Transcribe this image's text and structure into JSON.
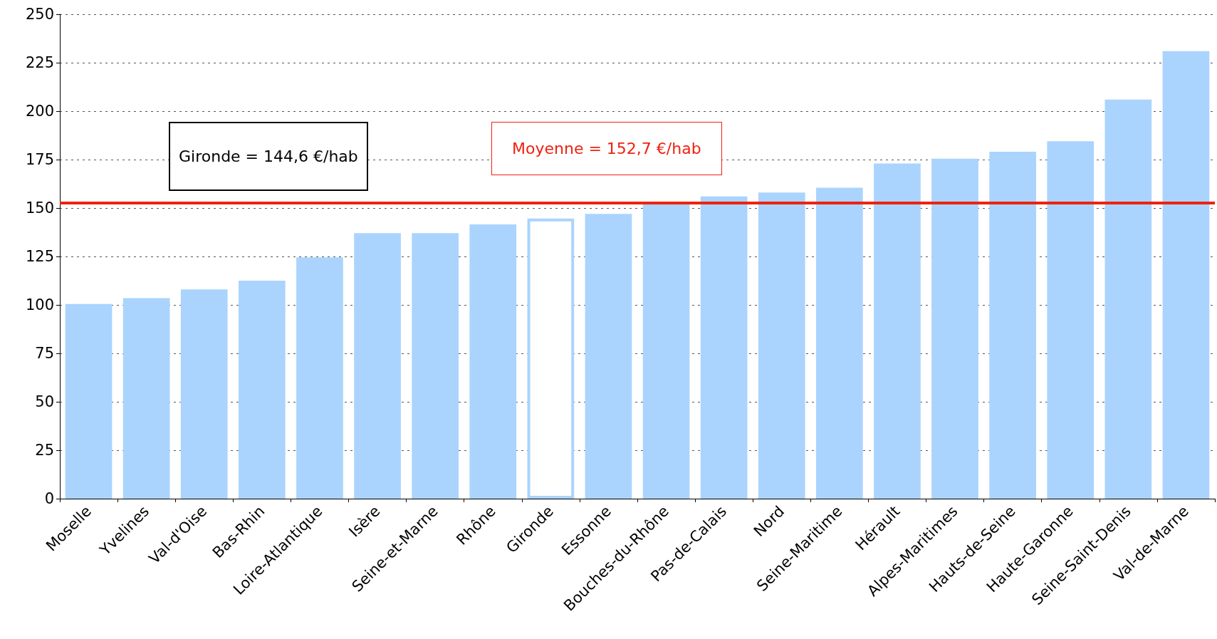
{
  "chart_data": {
    "type": "bar",
    "categories": [
      "Moselle",
      "Yvelines",
      "Val-d'Oise",
      "Bas-Rhin",
      "Loire-Atlantique",
      "Isère",
      "Seine-et-Marne",
      "Rhône",
      "Gironde",
      "Essonne",
      "Bouches-du-Rhône",
      "Pas-de-Calais",
      "Nord",
      "Seine-Maritime",
      "Hérault",
      "Alpes-Maritimes",
      "Hauts-de-Seine",
      "Haute-Garonne",
      "Seine-Saint-Denis",
      "Val-de-Marne"
    ],
    "values": [
      100.5,
      103.5,
      108,
      112.5,
      124.5,
      137,
      137,
      141.5,
      144.6,
      147,
      152,
      156,
      158,
      160.5,
      173,
      175.5,
      179,
      184.5,
      206,
      231
    ],
    "color": "#aad4fd",
    "colors": [
      "#aad4fd",
      "#aad4fd",
      "#aad4fd",
      "#aad4fd",
      "#aad4fd",
      "#aad4fd",
      "#aad4fd",
      "#aad4fd",
      "#ffffff",
      "#aad4fd",
      "#aad4fd",
      "#aad4fd",
      "#aad4fd",
      "#aad4fd",
      "#aad4fd",
      "#aad4fd",
      "#aad4fd",
      "#aad4fd",
      "#aad4fd",
      "#aad4fd"
    ],
    "ylim": [
      0,
      250
    ],
    "yticks": [
      0,
      25,
      50,
      75,
      100,
      125,
      150,
      175,
      200,
      225,
      250
    ],
    "grid": "y",
    "ref_lines": [
      {
        "axis": "y",
        "value": 152.7,
        "label": "Moyenne = 152,7 €/hab",
        "color": "#ee2211"
      }
    ],
    "annotations": [
      "Gironde = 144,6 €/hab"
    ]
  }
}
